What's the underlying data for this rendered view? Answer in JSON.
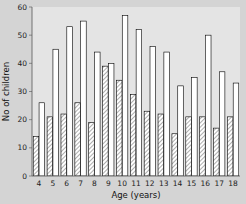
{
  "chart_data": {
    "type": "bar",
    "xlabel": "Age (years)",
    "ylabel": "No of children",
    "categories": [
      "4",
      "5",
      "6",
      "7",
      "8",
      "9",
      "10",
      "11",
      "12",
      "13",
      "14",
      "15",
      "16",
      "17",
      "18"
    ],
    "series": [
      {
        "color": "white",
        "values": [
          14,
          21,
          22,
          26,
          19,
          39,
          34,
          29,
          23,
          22,
          15,
          21,
          21,
          17,
          21
        ]
      },
      {
        "color": "white",
        "values": [
          26,
          45,
          53,
          55,
          44,
          40,
          57,
          52,
          46,
          44,
          32,
          35,
          50,
          37,
          33
        ]
      }
    ],
    "ylim": [
      0,
      60
    ],
    "yticks": [
      0,
      10,
      20,
      30,
      40,
      50,
      60
    ]
  }
}
